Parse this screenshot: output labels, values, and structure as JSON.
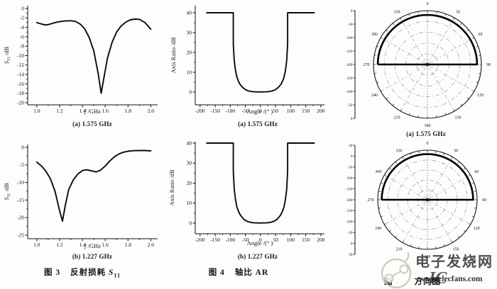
{
  "figure": {
    "captions": {
      "s11_a": "(a) 1.575 GHz",
      "s11_b": "(b) 1.227 GHz",
      "ar_a": "(a) 1.575 GHz",
      "ar_b": "(b) 1.227 GHz",
      "polar_a": "(a) 1.575 GHz",
      "fig3_num": "图 3",
      "fig3_text": "反射损耗 ",
      "fig3_sym": "S",
      "fig3_sub": "11",
      "fig4_num": "图 4",
      "fig4_text": "轴比 AR",
      "fig5_num": "图",
      "fig5_text": "方向图"
    },
    "watermark": {
      "brand_cn": "电子发烧网",
      "brand_red": "IC",
      "url": "www.elecfans.com",
      "gray": "#b9b0a7",
      "red": "#e23b30",
      "blue": "#8ca4d8"
    },
    "line_color": "#0a0a0a"
  },
  "chart_data": [
    {
      "id": "s11_a",
      "type": "line",
      "title": "(a) 1.575 GHz",
      "xlabel": "f /GHz",
      "xlabel_parts": [
        {
          "t": "f",
          "i": true
        },
        {
          "t": " /GHz"
        }
      ],
      "ylabel": "S11 /dB",
      "ylabel_parts": [
        {
          "t": "S",
          "i": true
        },
        {
          "t": "11",
          "sub": true
        },
        {
          "t": " /dB"
        }
      ],
      "xlim": [
        0.92,
        2.06
      ],
      "ylim": [
        -20,
        0
      ],
      "xticks": [
        1.0,
        1.2,
        1.4,
        1.6,
        1.8,
        2.0
      ],
      "xtick_labels": [
        "1.0",
        "1.2",
        "1.4",
        "1.6",
        "1.8",
        "2.0"
      ],
      "yticks": [
        0,
        -2,
        -4,
        -6,
        -8,
        -10,
        -12,
        -14,
        -16,
        -18,
        -20
      ],
      "xminor_step": 0.1,
      "yminor_step": 1,
      "x": [
        1.0,
        1.04,
        1.08,
        1.12,
        1.16,
        1.2,
        1.25,
        1.3,
        1.34,
        1.38,
        1.42,
        1.46,
        1.5,
        1.54,
        1.565,
        1.59,
        1.62,
        1.66,
        1.7,
        1.74,
        1.78,
        1.82,
        1.86,
        1.9,
        1.95,
        2.0
      ],
      "y": [
        -3.0,
        -3.3,
        -3.5,
        -3.3,
        -3.0,
        -2.8,
        -2.65,
        -2.6,
        -2.75,
        -3.3,
        -4.3,
        -6.2,
        -9.0,
        -14.0,
        -18.0,
        -14.5,
        -10.5,
        -7.2,
        -5.0,
        -3.7,
        -2.9,
        -2.4,
        -2.25,
        -2.3,
        -3.0,
        -4.4
      ]
    },
    {
      "id": "s11_b",
      "type": "line",
      "title": "(b) 1.227 GHz",
      "xlabel": "f /GHz",
      "xlabel_parts": [
        {
          "t": "f",
          "i": true
        },
        {
          "t": " /GHz"
        }
      ],
      "ylabel": "S11 /dB",
      "ylabel_parts": [
        {
          "t": "S",
          "i": true
        },
        {
          "t": "11",
          "sub": true
        },
        {
          "t": " /dB"
        }
      ],
      "xlim": [
        0.92,
        2.06
      ],
      "ylim": [
        -25,
        0
      ],
      "xticks": [
        1.0,
        1.2,
        1.4,
        1.6,
        1.8,
        2.0
      ],
      "xtick_labels": [
        "1.0",
        "1.2",
        "1.4",
        "1.6",
        "1.8",
        "2.0"
      ],
      "yticks": [
        0,
        -5,
        -10,
        -15,
        -20,
        -25
      ],
      "xminor_step": 0.1,
      "yminor_step": 2.5,
      "x": [
        1.0,
        1.04,
        1.08,
        1.12,
        1.16,
        1.2,
        1.225,
        1.25,
        1.28,
        1.32,
        1.36,
        1.4,
        1.44,
        1.48,
        1.52,
        1.56,
        1.6,
        1.64,
        1.68,
        1.72,
        1.76,
        1.8,
        1.85,
        1.9,
        1.95,
        2.0
      ],
      "y": [
        -4.2,
        -5.3,
        -6.8,
        -9.0,
        -12.5,
        -18.0,
        -21.0,
        -16.5,
        -12.0,
        -9.3,
        -7.6,
        -6.6,
        -6.4,
        -6.7,
        -7.0,
        -6.5,
        -5.3,
        -3.9,
        -2.7,
        -1.9,
        -1.4,
        -1.1,
        -0.95,
        -0.9,
        -0.9,
        -1.0
      ]
    },
    {
      "id": "ar_a",
      "type": "line",
      "title": "(a) 1.575 GHz",
      "xlabel": "Angle /(° )",
      "xlabel_parts": [
        {
          "t": "Angle /(° )"
        }
      ],
      "ylabel": "Axis Ratio /dB",
      "ylabel_parts": [
        {
          "t": "Axis Ratio /dB"
        }
      ],
      "xlim": [
        -216,
        212
      ],
      "ylim": [
        0,
        40
      ],
      "xticks": [
        -200,
        -150,
        -100,
        -50,
        0,
        50,
        100,
        150,
        200
      ],
      "xtick_labels": [
        "-200",
        "-150",
        "-100",
        "-50",
        "0",
        "50",
        "100",
        "150",
        "200"
      ],
      "yticks": [
        0,
        10,
        20,
        30,
        40
      ],
      "xminor_step": 25,
      "yminor_step": 5,
      "x": [
        -178,
        -92,
        -90,
        -90,
        -87,
        -83,
        -78,
        -73,
        -68,
        -63,
        -58,
        -53,
        -48,
        -43,
        -38,
        -30,
        -20,
        -10,
        0,
        10,
        20,
        30,
        38,
        43,
        48,
        53,
        58,
        63,
        68,
        73,
        78,
        83,
        87,
        90,
        90,
        92,
        178
      ],
      "y": [
        40,
        40,
        40,
        24,
        16,
        11,
        7.5,
        5.5,
        4,
        3,
        2.2,
        1.6,
        1.1,
        0.8,
        0.55,
        0.3,
        0.15,
        0.1,
        0.08,
        0.1,
        0.15,
        0.3,
        0.55,
        0.8,
        1.1,
        1.6,
        2.2,
        3,
        4,
        5.5,
        7.5,
        11,
        16,
        24,
        40,
        40,
        40
      ]
    },
    {
      "id": "ar_b",
      "type": "line",
      "title": "(b) 1.227 GHz",
      "xlabel": "Angle /(° )",
      "xlabel_parts": [
        {
          "t": "Angle /(° )"
        }
      ],
      "ylabel": "Axis Ratio /dB",
      "ylabel_parts": [
        {
          "t": "Axis Ratio /dB"
        }
      ],
      "xlim": [
        -216,
        212
      ],
      "ylim": [
        0,
        40
      ],
      "xticks": [
        -200,
        -150,
        -100,
        -50,
        0,
        50,
        100,
        150,
        200
      ],
      "xtick_labels": [
        "-200",
        "-150",
        "-100",
        "-50",
        "0",
        "50",
        "100",
        "150",
        "200"
      ],
      "yticks": [
        0,
        10,
        20,
        30,
        40
      ],
      "xminor_step": 25,
      "yminor_step": 5,
      "x": [
        -178,
        -92,
        -90,
        -90,
        -87,
        -83,
        -78,
        -73,
        -68,
        -63,
        -58,
        -53,
        -48,
        -43,
        -38,
        -30,
        -20,
        -10,
        0,
        10,
        20,
        30,
        38,
        43,
        48,
        53,
        58,
        63,
        68,
        73,
        78,
        83,
        87,
        90,
        90,
        92,
        178
      ],
      "y": [
        40,
        40,
        40,
        26,
        17,
        12,
        8,
        6,
        4.4,
        3.3,
        2.4,
        1.7,
        1.2,
        0.85,
        0.6,
        0.3,
        0.15,
        0.1,
        0.08,
        0.1,
        0.15,
        0.3,
        0.6,
        0.85,
        1.2,
        1.7,
        2.4,
        3.3,
        4.4,
        6,
        8,
        12,
        17,
        26,
        40,
        40,
        40
      ]
    },
    {
      "id": "polar_a",
      "type": "polar",
      "title": "(a) 1.575 GHz",
      "angle_labels": [
        "0",
        "30",
        "60",
        "90",
        "120",
        "150",
        "180",
        "210",
        "240",
        "270",
        "300",
        "330"
      ],
      "radial_labels": [
        "0",
        "-50",
        "-100",
        "-150",
        "-200",
        "-150",
        "-100",
        "-50",
        "0"
      ],
      "rings": [
        0.2,
        0.4,
        0.6,
        0.8
      ],
      "inner_ring": 0.09,
      "pattern": {
        "shape": "upper-hemisphere",
        "arc_start_deg": -90,
        "arc_end_deg": 90,
        "radius_frac": 0.92,
        "chord": true
      }
    },
    {
      "id": "polar_b",
      "type": "polar",
      "title": "",
      "angle_labels": [
        "0",
        "30",
        "60",
        "90",
        "120",
        "150",
        "180",
        "210",
        "240",
        "270",
        "300",
        "330"
      ],
      "radial_labels": [
        "50",
        "0",
        "-50",
        "-100",
        "-150",
        "-200",
        "-150",
        "-100",
        "-50",
        "0",
        "50"
      ],
      "rings": [
        0.2,
        0.4,
        0.6,
        0.8
      ],
      "inner_ring": 0.09,
      "pattern": {
        "shape": "upper-hemisphere",
        "arc_start_deg": -90,
        "arc_end_deg": 90,
        "radius_frac": 0.92,
        "chord": true
      }
    }
  ]
}
